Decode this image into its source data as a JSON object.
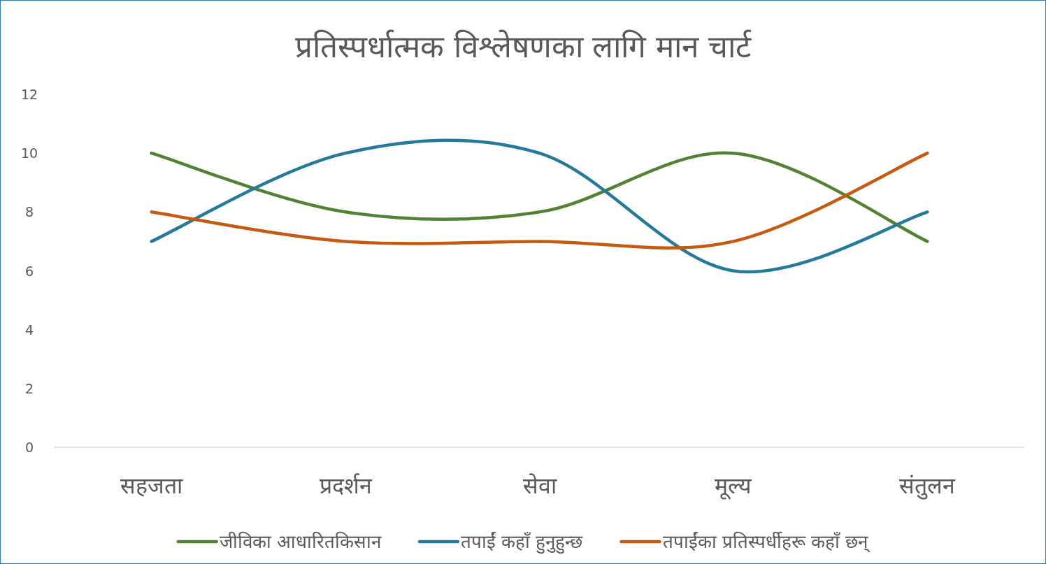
{
  "chart_data": {
    "type": "line",
    "title": "प्रतिस्पर्धात्मक विश्लेषणका लागि मान चार्ट",
    "categories": [
      "सहजता",
      "प्रदर्शन",
      "सेवा",
      "मूल्य",
      "संतुलन"
    ],
    "ylim": [
      0,
      12
    ],
    "yticks": [
      0,
      2,
      4,
      6,
      8,
      10,
      12
    ],
    "grid": false,
    "legend": "bottom",
    "marker": "none",
    "line_style": "solid",
    "series": [
      {
        "name": "जीविका आधारितकिसान",
        "color": "#548235",
        "values": [
          10,
          8,
          8,
          10,
          7
        ]
      },
      {
        "name": "तपाईं कहाँ हुनुहुन्छ",
        "color": "#25799a",
        "values": [
          7,
          10,
          10,
          6,
          8
        ]
      },
      {
        "name": "तपाईंका प्रतिस्पर्धीहरू कहाँ छन्",
        "color": "#c55a11",
        "values": [
          8,
          7,
          7,
          7,
          10
        ]
      }
    ]
  }
}
